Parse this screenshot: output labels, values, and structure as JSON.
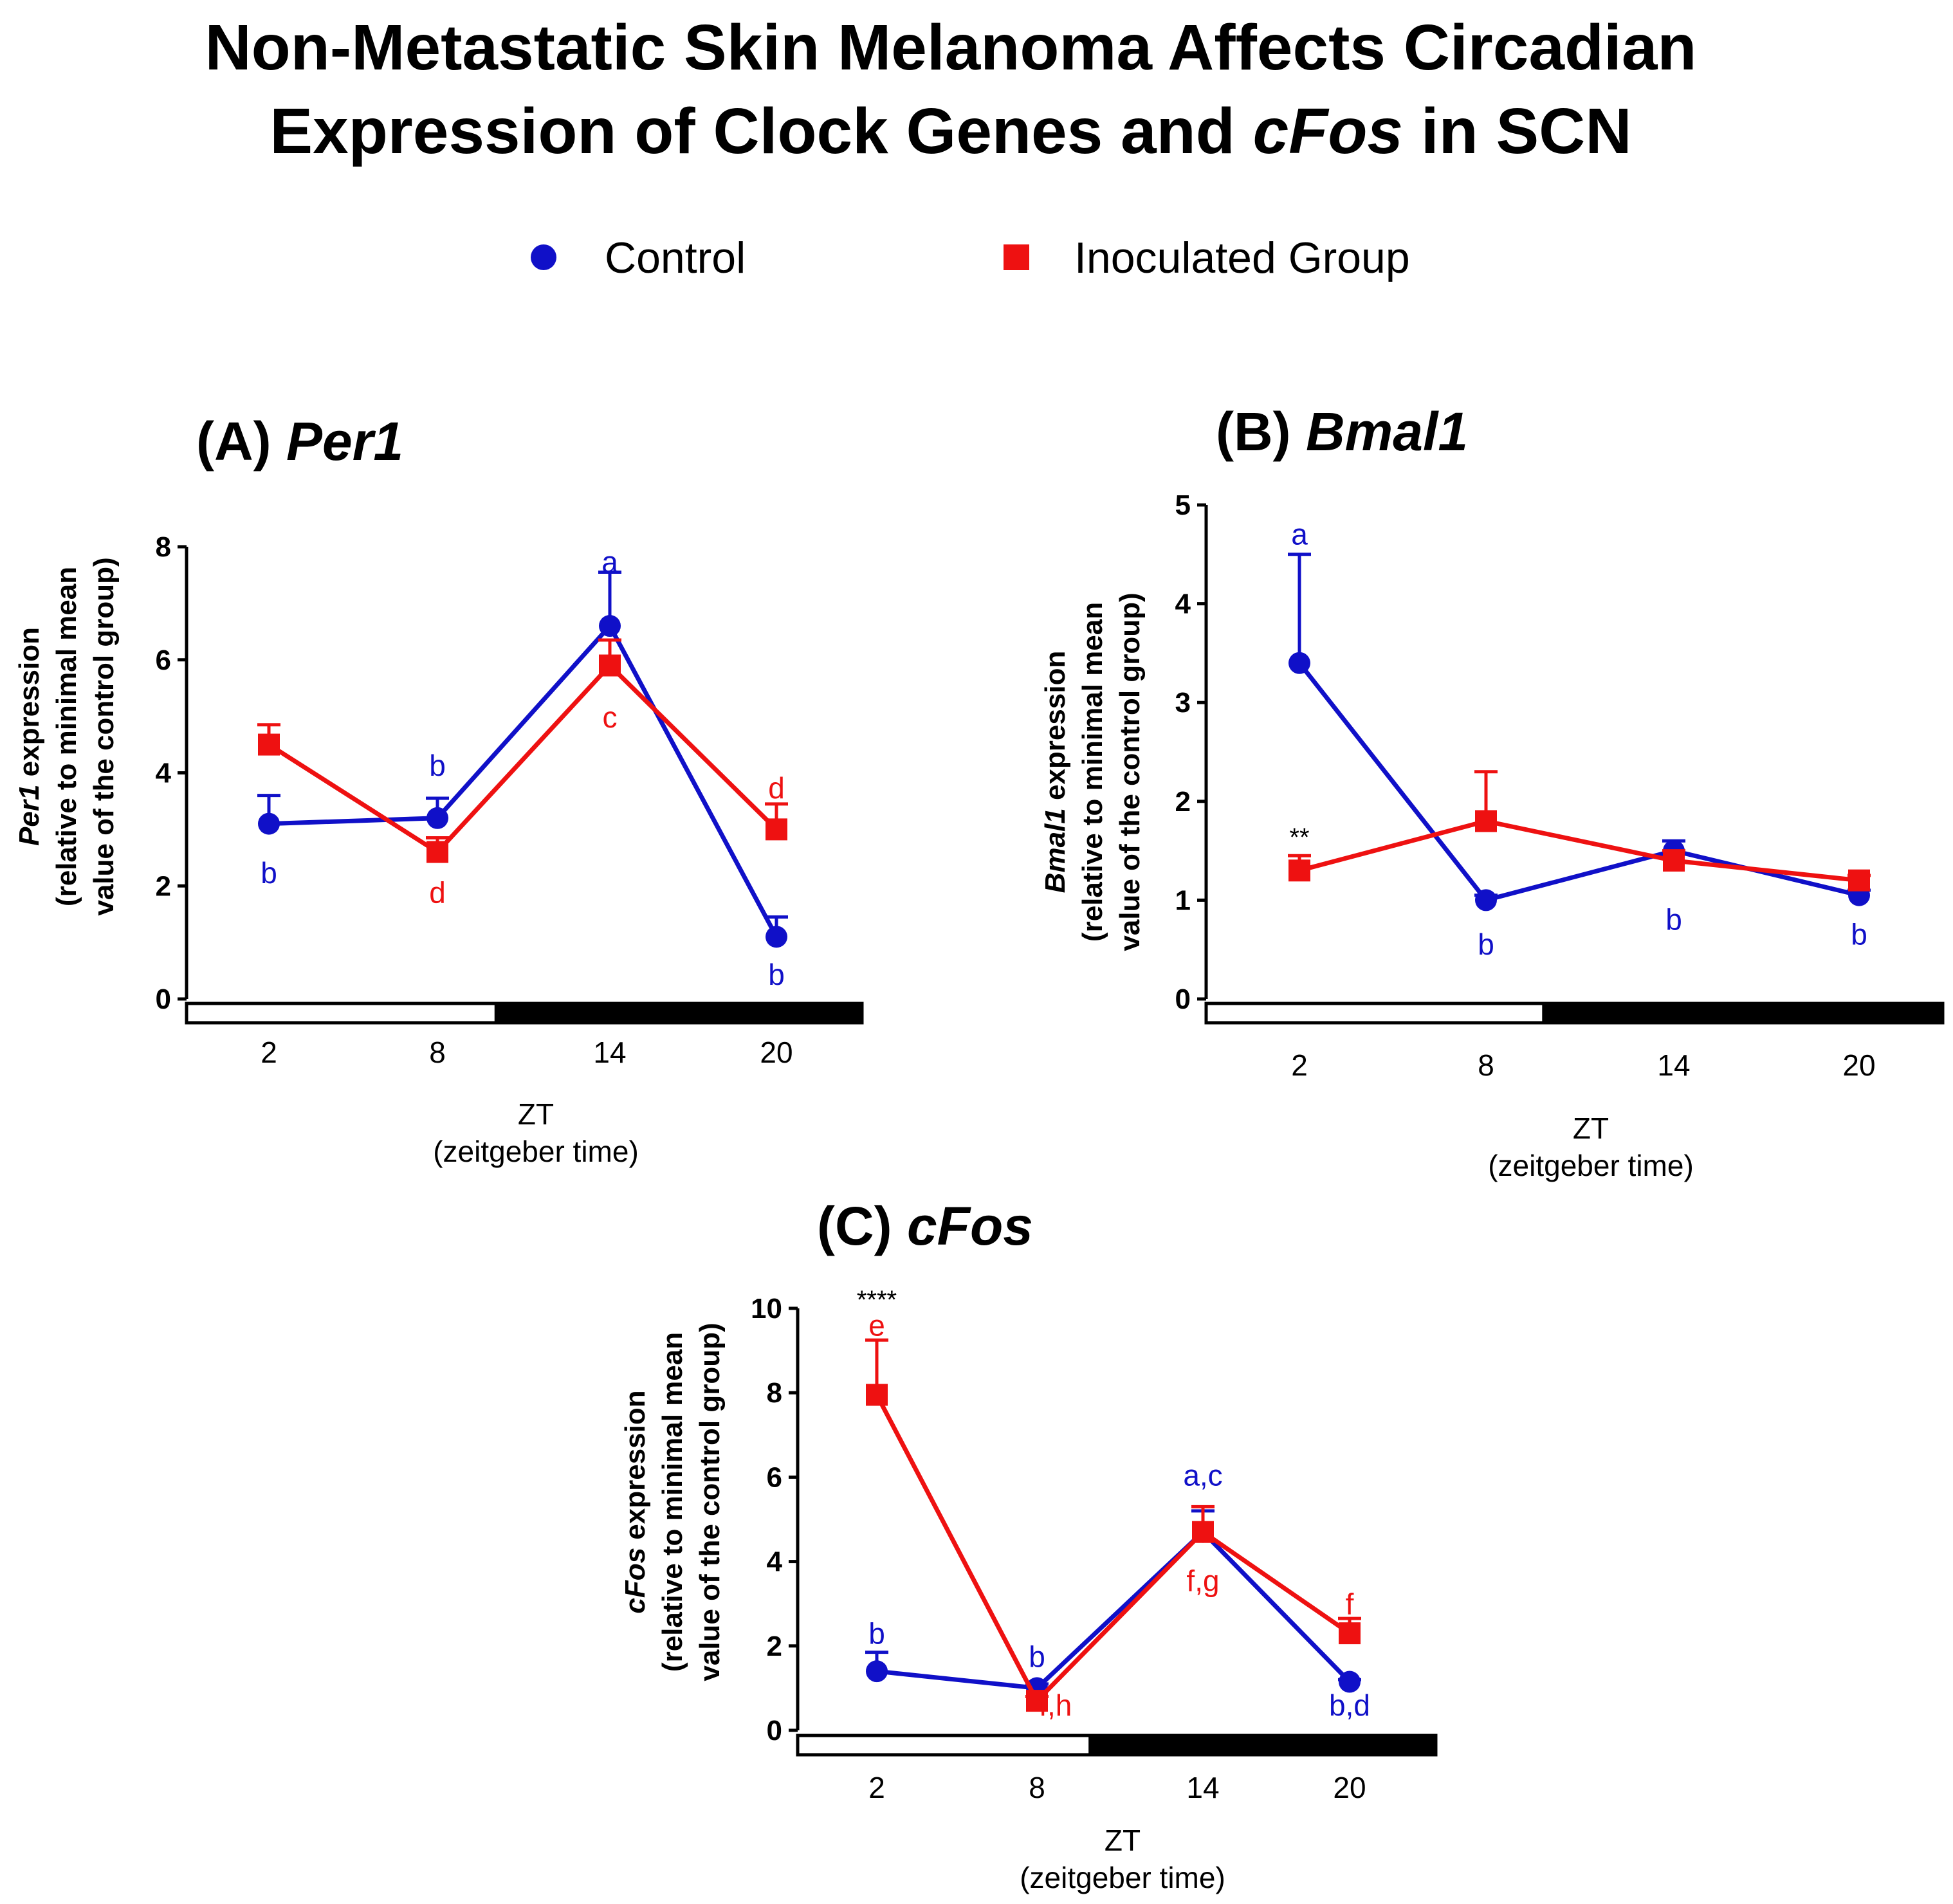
{
  "figure": {
    "title_line1": "Non-Metastatic Skin Melanoma Affects Circadian",
    "title_line2_a": "Expression of Clock Genes and ",
    "title_line2_italic": "cFos",
    "title_line2_b": " in SCN",
    "legend": [
      {
        "label": "Control",
        "marker": "circle",
        "color": "#1010c8"
      },
      {
        "label": "Inoculated Group",
        "marker": "square",
        "color": "#ee1111"
      }
    ],
    "colors": {
      "control": "#1010c8",
      "inoculated": "#ee1111"
    }
  },
  "chart_data": [
    {
      "type": "line",
      "panel_prefix": "(A) ",
      "panel_gene": "Per1",
      "ylabel_gene": "Per1",
      "ylabel_rest": " expression",
      "ylabel_line2": "(relative to minimal mean",
      "ylabel_line3": "value of the control group)",
      "xlabel": "ZT",
      "xlabel_sub": "(zeitgeber time)",
      "categories": [
        "2",
        "8",
        "14",
        "20"
      ],
      "ylim": [
        0,
        8
      ],
      "yticks": [
        0,
        2,
        4,
        6,
        8
      ],
      "light_dark_split": 11,
      "series": [
        {
          "name": "Control",
          "values": [
            3.1,
            3.2,
            6.6,
            1.1
          ],
          "errors": [
            0.5,
            0.35,
            0.95,
            0.35
          ]
        },
        {
          "name": "Inoculated Group",
          "values": [
            4.5,
            2.6,
            5.9,
            3.0
          ],
          "errors": [
            0.35,
            0.25,
            0.45,
            0.45
          ]
        }
      ],
      "annotations": [
        {
          "text": "b",
          "series": "Control",
          "cat": 0,
          "y": 2.05
        },
        {
          "text": "b",
          "series": "Control",
          "cat": 1,
          "y": 3.95
        },
        {
          "text": "a",
          "series": "Control",
          "cat": 2,
          "y": 7.55
        },
        {
          "text": "b",
          "series": "Control",
          "cat": 3,
          "y": 0.25
        },
        {
          "text": "d",
          "series": "Inoculated Group",
          "cat": 1,
          "y": 1.7
        },
        {
          "text": "c",
          "series": "Inoculated Group",
          "cat": 2,
          "y": 4.8
        },
        {
          "text": "d",
          "series": "Inoculated Group",
          "cat": 3,
          "y": 3.55
        }
      ]
    },
    {
      "type": "line",
      "panel_prefix": "(B) ",
      "panel_gene": "Bmal1",
      "ylabel_gene": "Bmal1",
      "ylabel_rest": " expression",
      "ylabel_line2": "(relative to minimal mean",
      "ylabel_line3": "value of the control group)",
      "xlabel": "ZT",
      "xlabel_sub": "(zeitgeber time)",
      "categories": [
        "2",
        "8",
        "14",
        "20"
      ],
      "ylim": [
        0,
        5
      ],
      "yticks": [
        0,
        1,
        2,
        3,
        4,
        5
      ],
      "light_dark_split": 11,
      "series": [
        {
          "name": "Control",
          "values": [
            3.4,
            1.0,
            1.5,
            1.05
          ],
          "errors": [
            1.1,
            0.05,
            0.1,
            0.05
          ]
        },
        {
          "name": "Inoculated Group",
          "values": [
            1.3,
            1.8,
            1.4,
            1.2
          ],
          "errors": [
            0.15,
            0.5,
            0.1,
            0.05
          ]
        }
      ],
      "annotations": [
        {
          "text": "a",
          "series": "Control",
          "cat": 0,
          "y": 4.6
        },
        {
          "text": "b",
          "series": "Control",
          "cat": 1,
          "y": 0.45
        },
        {
          "text": "b",
          "series": "Control",
          "cat": 2,
          "y": 0.7
        },
        {
          "text": "b",
          "series": "Control",
          "cat": 3,
          "y": 0.55
        },
        {
          "text": "**",
          "series": "sig",
          "cat": 0,
          "y": 1.55
        }
      ]
    },
    {
      "type": "line",
      "panel_prefix": "(C) ",
      "panel_gene": "cFos",
      "ylabel_gene": "cFos",
      "ylabel_rest": " expression",
      "ylabel_line2": "(relative to minimal mean",
      "ylabel_line3": "value of the control group)",
      "xlabel": "ZT",
      "xlabel_sub": "(zeitgeber time)",
      "categories": [
        "2",
        "8",
        "14",
        "20"
      ],
      "ylim": [
        0,
        10
      ],
      "yticks": [
        0,
        2,
        4,
        6,
        8,
        10
      ],
      "light_dark_split": 11,
      "series": [
        {
          "name": "Control",
          "values": [
            1.4,
            1.0,
            4.7,
            1.15
          ],
          "errors": [
            0.45,
            0.1,
            0.5,
            0.05
          ]
        },
        {
          "name": "Inoculated Group",
          "values": [
            7.95,
            0.7,
            4.7,
            2.3
          ],
          "errors": [
            1.3,
            0.1,
            0.6,
            0.35
          ]
        }
      ],
      "annotations": [
        {
          "text": "b",
          "series": "Control",
          "cat": 0,
          "y": 2.05
        },
        {
          "text": "b",
          "series": "Control",
          "cat": 1,
          "y": 1.5
        },
        {
          "text": "a,c",
          "series": "Control",
          "cat": 2,
          "y": 5.8
        },
        {
          "text": "b,d",
          "series": "Control",
          "cat": 3,
          "y": 0.35
        },
        {
          "text": "e",
          "series": "Inoculated Group",
          "cat": 0,
          "y": 9.35
        },
        {
          "text": "f,h",
          "series": "Inoculated Group",
          "cat": 1,
          "y": 0.35,
          "dx": 0.33
        },
        {
          "text": "f,g",
          "series": "Inoculated Group",
          "cat": 2,
          "y": 3.3
        },
        {
          "text": "f",
          "series": "Inoculated Group",
          "cat": 3,
          "y": 2.75
        },
        {
          "text": "****",
          "series": "sig",
          "cat": 0,
          "y": 10.0
        }
      ]
    }
  ]
}
